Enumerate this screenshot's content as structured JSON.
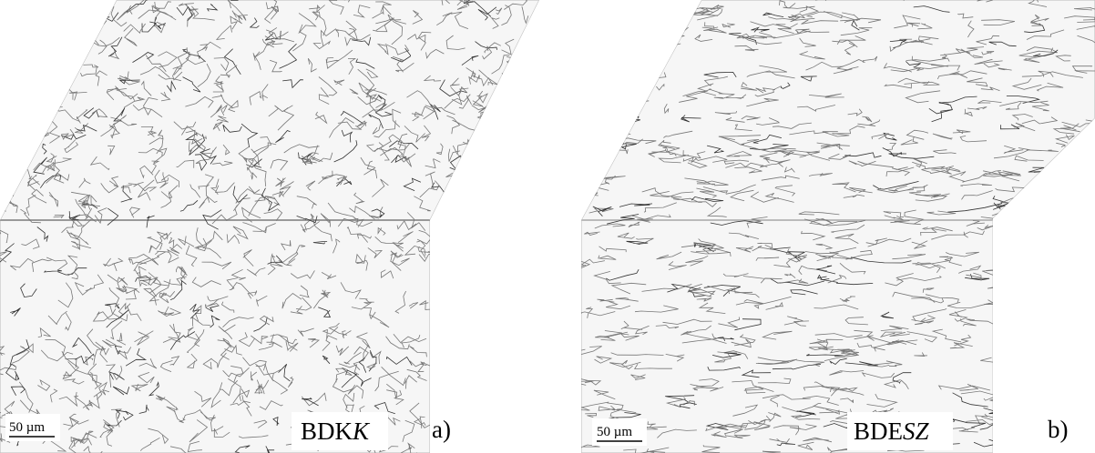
{
  "panels": [
    {
      "scale_bar": "50 µm",
      "label": {
        "upright": "BDK",
        "italic": "K"
      },
      "letter": "a)"
    },
    {
      "scale_bar": "50 µm",
      "label": {
        "upright": "BDE",
        "italic": "SZ"
      },
      "letter": "b)"
    }
  ]
}
